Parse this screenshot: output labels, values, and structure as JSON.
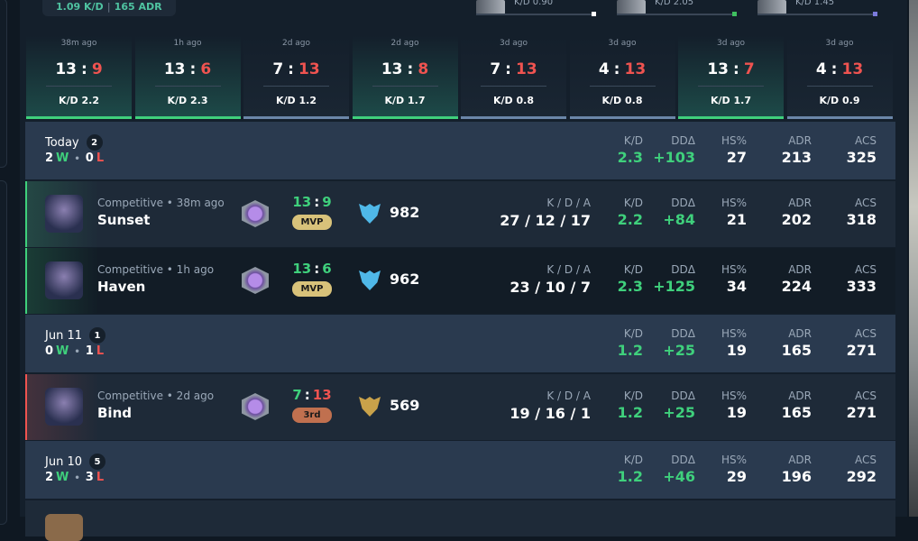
{
  "header": {
    "summary_kd": "1.09 K/D",
    "summary_sep": "|",
    "summary_adr": "165 ADR",
    "agents": [
      {
        "kd": "K/D 0.90",
        "color": "#ffffff"
      },
      {
        "kd": "K/D 2.05",
        "color": "#3fbf5f"
      },
      {
        "kd": "K/D 1.45",
        "color": "#7b7bdc"
      }
    ]
  },
  "score_separator": ":",
  "recent": [
    {
      "time": "38m ago",
      "score": 13,
      "opp": 9,
      "kd": "K/D 2.2"
    },
    {
      "time": "1h ago",
      "score": 13,
      "opp": 6,
      "kd": "K/D 2.3"
    },
    {
      "time": "2d ago",
      "score": 7,
      "opp": 13,
      "kd": "K/D 1.2"
    },
    {
      "time": "2d ago",
      "score": 13,
      "opp": 8,
      "kd": "K/D 1.7"
    },
    {
      "time": "3d ago",
      "score": 7,
      "opp": 13,
      "kd": "K/D 0.8"
    },
    {
      "time": "3d ago",
      "score": 4,
      "opp": 13,
      "kd": "K/D 0.8"
    },
    {
      "time": "3d ago",
      "score": 13,
      "opp": 7,
      "kd": "K/D 1.7"
    },
    {
      "time": "3d ago",
      "score": 4,
      "opp": 13,
      "kd": "K/D 0.9"
    }
  ],
  "columns": [
    "K/D",
    "DDΔ",
    "HS%",
    "ADR",
    "ACS"
  ],
  "kda_header": "K / D / A",
  "groups": [
    {
      "date": "Today",
      "count": 2,
      "wins": 2,
      "win_label": "W",
      "separator": "•",
      "losses": 0,
      "loss_label": "L",
      "stats": [
        "2.3",
        "+103",
        "27",
        "213",
        "325"
      ],
      "matches": [
        {
          "mode": "Competitive • 38m ago",
          "map": "Sunset",
          "score": 13,
          "opp": 9,
          "badge": "MVP",
          "rating": 982,
          "kda": "27 / 12 / 17",
          "stats": [
            "2.2",
            "+84",
            "21",
            "202",
            "318"
          ]
        },
        {
          "mode": "Competitive • 1h ago",
          "map": "Haven",
          "score": 13,
          "opp": 6,
          "badge": "MVP",
          "rating": 962,
          "kda": "23 / 10 / 7",
          "stats": [
            "2.3",
            "+125",
            "34",
            "224",
            "333"
          ]
        }
      ]
    },
    {
      "date": "Jun 11",
      "count": 1,
      "wins": 0,
      "win_label": "W",
      "separator": "•",
      "losses": 1,
      "loss_label": "L",
      "stats": [
        "1.2",
        "+25",
        "19",
        "165",
        "271"
      ],
      "matches": [
        {
          "mode": "Competitive • 2d ago",
          "map": "Bind",
          "score": 7,
          "opp": 13,
          "badge": "3rd",
          "rating": 569,
          "kda": "19 / 16 / 1",
          "stats": [
            "1.2",
            "+25",
            "19",
            "165",
            "271"
          ]
        }
      ]
    },
    {
      "date": "Jun 10",
      "count": 5,
      "wins": 2,
      "win_label": "W",
      "separator": "•",
      "losses": 3,
      "loss_label": "L",
      "stats": [
        "1.2",
        "+46",
        "29",
        "196",
        "292"
      ],
      "matches": []
    }
  ]
}
